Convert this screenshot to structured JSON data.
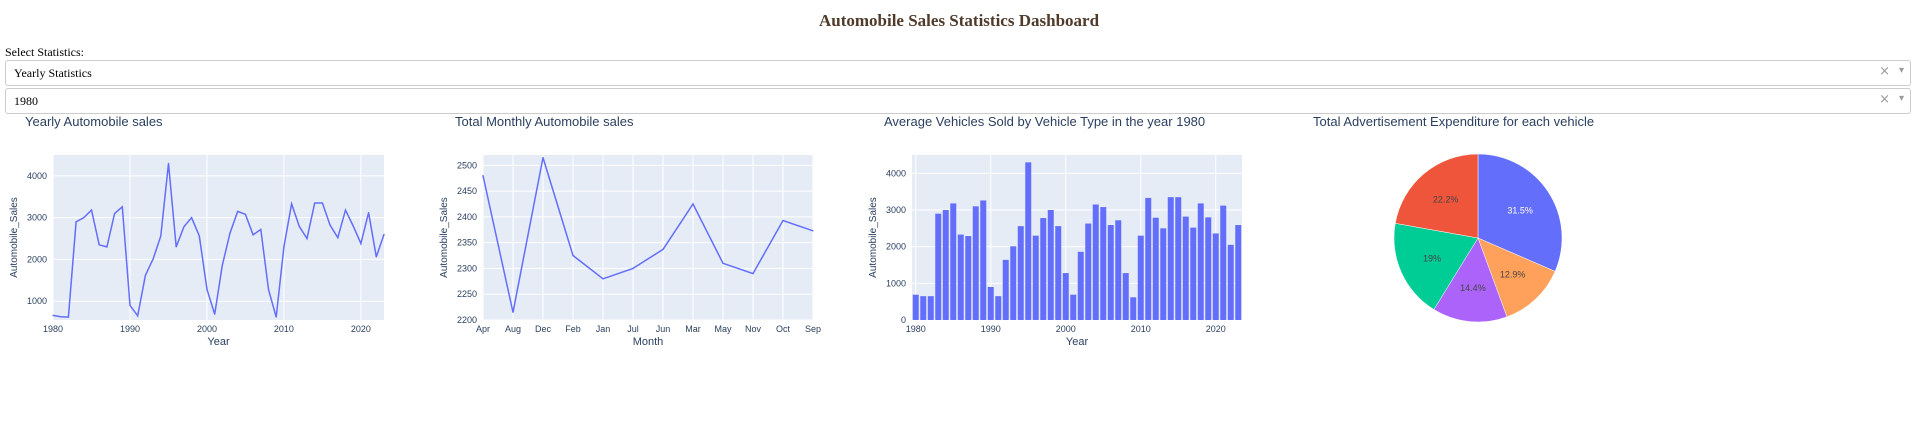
{
  "header": {
    "title": "Automobile Sales Statistics Dashboard"
  },
  "controls": {
    "select_label": "Select Statistics:",
    "statistics_value": "Yearly Statistics",
    "year_value": "1980",
    "clear_glyph": "×",
    "caret_glyph": "▾"
  },
  "colors": {
    "series": "#636efa",
    "plot_bg": "#e5ecf6",
    "grid": "#ffffff",
    "text": "#2a3f5f"
  },
  "chart_data": [
    {
      "type": "line",
      "title": "Yearly Automobile sales",
      "xlabel": "Year",
      "ylabel": "Automobile_Sales",
      "xlim": [
        1980,
        2023
      ],
      "ylim": [
        550,
        4500
      ],
      "xticks": [
        1980,
        1990,
        2000,
        2010,
        2020
      ],
      "yticks": [
        1000,
        2000,
        3000,
        4000
      ],
      "x": [
        1980,
        1981,
        1982,
        1983,
        1984,
        1985,
        1986,
        1987,
        1988,
        1989,
        1990,
        1991,
        1992,
        1993,
        1994,
        1995,
        1996,
        1997,
        1998,
        1999,
        2000,
        2001,
        2002,
        2003,
        2004,
        2005,
        2006,
        2007,
        2008,
        2009,
        2010,
        2011,
        2012,
        2013,
        2014,
        2015,
        2016,
        2017,
        2018,
        2019,
        2020,
        2021,
        2022,
        2023
      ],
      "y": [
        660,
        630,
        620,
        2900,
        3000,
        3180,
        2350,
        2300,
        3100,
        3260,
        900,
        650,
        1620,
        2010,
        2560,
        4300,
        2300,
        2780,
        3000,
        2560,
        1280,
        690,
        1860,
        2630,
        3150,
        3080,
        2590,
        2720,
        1280,
        620,
        2300,
        3330,
        2790,
        2500,
        3350,
        3350,
        2820,
        2520,
        3180,
        2800,
        2380,
        3120,
        2060,
        2600
      ]
    },
    {
      "type": "line",
      "title": "Total Monthly Automobile sales",
      "xlabel": "Month",
      "ylabel": "Automobile_Sales",
      "ylim": [
        2200,
        2520
      ],
      "yticks": [
        2200,
        2250,
        2300,
        2350,
        2400,
        2450,
        2500
      ],
      "categories": [
        "Apr",
        "Aug",
        "Dec",
        "Feb",
        "Jan",
        "Jul",
        "Jun",
        "Mar",
        "May",
        "Nov",
        "Oct",
        "Sep"
      ],
      "values": [
        2480,
        2215,
        2515,
        2325,
        2280,
        2300,
        2337,
        2425,
        2310,
        2290,
        2393,
        2373
      ]
    },
    {
      "type": "bar",
      "title": "Average Vehicles Sold by Vehicle Type in the year 1980",
      "xlabel": "Year",
      "ylabel": "Automobile_Sales",
      "xlim": [
        1980,
        2023
      ],
      "ylim": [
        0,
        4500
      ],
      "xticks": [
        1980,
        1990,
        2000,
        2010,
        2020
      ],
      "yticks": [
        0,
        1000,
        2000,
        3000,
        4000
      ],
      "x": [
        1980,
        1981,
        1982,
        1983,
        1984,
        1985,
        1986,
        1987,
        1988,
        1989,
        1990,
        1991,
        1992,
        1993,
        1994,
        1995,
        1996,
        1997,
        1998,
        1999,
        2000,
        2001,
        2002,
        2003,
        2004,
        2005,
        2006,
        2007,
        2008,
        2009,
        2010,
        2011,
        2012,
        2013,
        2014,
        2015,
        2016,
        2017,
        2018,
        2019,
        2020,
        2021,
        2022,
        2023
      ],
      "values": [
        690,
        650,
        650,
        2900,
        3000,
        3180,
        2330,
        2290,
        3100,
        3260,
        900,
        650,
        1640,
        2010,
        2560,
        4300,
        2300,
        2780,
        3000,
        2560,
        1280,
        690,
        1860,
        2630,
        3150,
        3080,
        2590,
        2720,
        1280,
        620,
        2300,
        3330,
        2790,
        2500,
        3350,
        3350,
        2820,
        2520,
        3180,
        2800,
        2360,
        3120,
        2050,
        2590
      ]
    },
    {
      "type": "pie",
      "title": "Total Advertisement Expenditure for each vehicle",
      "slices": [
        {
          "value": 31.5,
          "label": "31.5%",
          "color": "#636efa",
          "label_color": "#ffffff"
        },
        {
          "value": 12.9,
          "label": "12.9%",
          "color": "#ffa15a",
          "label_color": "#444444"
        },
        {
          "value": 14.4,
          "label": "14.4%",
          "color": "#ab63fa",
          "label_color": "#444444"
        },
        {
          "value": 19,
          "label": "19%",
          "color": "#00cc96",
          "label_color": "#444444"
        },
        {
          "value": 22.2,
          "label": "22.2%",
          "color": "#ef553b",
          "label_color": "#444444"
        }
      ]
    }
  ]
}
